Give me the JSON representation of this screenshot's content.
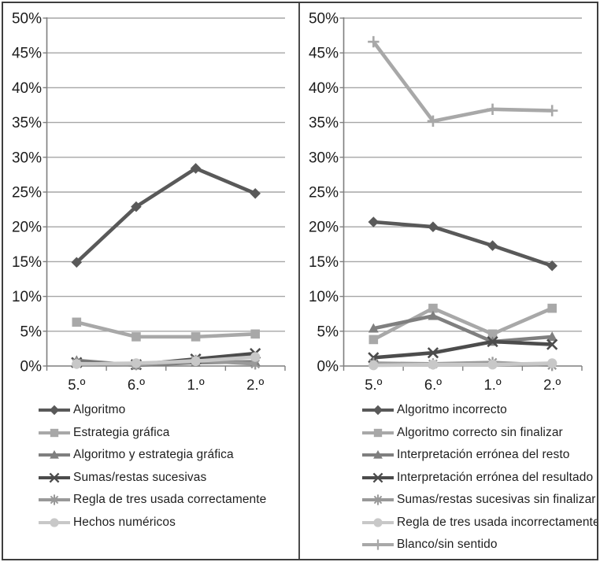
{
  "figure": {
    "description": "Two side-by-side grayscale line charts with bottom legends",
    "border_color": "#3e3e3e",
    "grid_color": "#a6a6a6",
    "axis_color": "#7f7f7f",
    "text_color": "#1c1c1c"
  },
  "chart_data": [
    {
      "type": "line",
      "title": "",
      "xlabel": "",
      "ylabel": "",
      "categories": [
        "5.º",
        "6.º",
        "1.º",
        "2.º"
      ],
      "ylim": [
        0,
        50
      ],
      "ytick_step": 5,
      "y_tick_labels": [
        "0%",
        "5%",
        "10%",
        "15%",
        "20%",
        "25%",
        "30%",
        "35%",
        "40%",
        "45%",
        "50%"
      ],
      "grid": true,
      "legend_position": "bottom",
      "series": [
        {
          "name": "Algoritmo",
          "marker": "diamond",
          "color": "#595959",
          "values": [
            14.9,
            22.9,
            28.4,
            24.8
          ]
        },
        {
          "name": "Estrategia gráfica",
          "marker": "square",
          "color": "#a8a8a8",
          "values": [
            6.3,
            4.2,
            4.2,
            4.6
          ]
        },
        {
          "name": "Algoritmo y estrategia gráfica",
          "marker": "triangle",
          "color": "#7f7f7f",
          "values": [
            0.8,
            0.1,
            0.5,
            0.6
          ]
        },
        {
          "name": "Sumas/restas sucesivas",
          "marker": "x",
          "color": "#4c4c4c",
          "values": [
            0.5,
            0.2,
            1.0,
            1.8
          ]
        },
        {
          "name": "Regla de tres usada correctamente",
          "marker": "asterisk",
          "color": "#999999",
          "values": [
            0.4,
            0.2,
            0.8,
            0.3
          ]
        },
        {
          "name": "Hechos numéricos",
          "marker": "circle",
          "color": "#c8c8c8",
          "values": [
            0.3,
            0.4,
            0.7,
            1.3
          ]
        }
      ]
    },
    {
      "type": "line",
      "title": "",
      "xlabel": "",
      "ylabel": "",
      "categories": [
        "5.º",
        "6.º",
        "1.º",
        "2.º"
      ],
      "ylim": [
        0,
        50
      ],
      "ytick_step": 5,
      "y_tick_labels": [
        "0%",
        "5%",
        "10%",
        "15%",
        "20%",
        "25%",
        "30%",
        "35%",
        "40%",
        "45%",
        "50%"
      ],
      "grid": true,
      "legend_position": "bottom",
      "series": [
        {
          "name": "Algoritmo incorrecto",
          "marker": "diamond",
          "color": "#595959",
          "values": [
            20.7,
            20.0,
            17.3,
            14.4
          ]
        },
        {
          "name": "Algoritmo correcto sin finalizar",
          "marker": "square",
          "color": "#a8a8a8",
          "values": [
            3.8,
            8.3,
            4.6,
            8.3
          ]
        },
        {
          "name": "Interpretación errónea del resto",
          "marker": "triangle",
          "color": "#7f7f7f",
          "values": [
            5.4,
            7.2,
            3.5,
            4.2
          ]
        },
        {
          "name": "Interpretación errónea del resultado",
          "marker": "x",
          "color": "#4c4c4c",
          "values": [
            1.2,
            1.9,
            3.5,
            3.1
          ]
        },
        {
          "name": "Sumas/restas sucesivas sin finalizar",
          "marker": "asterisk",
          "color": "#999999",
          "values": [
            0.4,
            0.3,
            0.5,
            0.1
          ]
        },
        {
          "name": "Regla de tres usada incorrectamente",
          "marker": "circle",
          "color": "#c8c8c8",
          "values": [
            0.1,
            0.2,
            0.2,
            0.4
          ]
        },
        {
          "name": "Blanco/sin sentido",
          "marker": "plus",
          "color": "#a8a8a8",
          "values": [
            46.6,
            35.2,
            36.9,
            36.7
          ]
        }
      ]
    }
  ]
}
